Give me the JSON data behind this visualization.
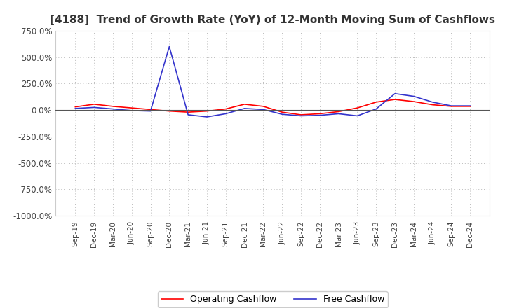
{
  "title": "[4188]  Trend of Growth Rate (YoY) of 12-Month Moving Sum of Cashflows",
  "ylim": [
    -1000,
    750
  ],
  "yticks": [
    750,
    500,
    250,
    0,
    -250,
    -500,
    -750,
    -1000
  ],
  "x_labels": [
    "Sep-19",
    "Dec-19",
    "Mar-20",
    "Jun-20",
    "Sep-20",
    "Dec-20",
    "Mar-21",
    "Jun-21",
    "Sep-21",
    "Dec-21",
    "Mar-22",
    "Jun-22",
    "Sep-22",
    "Dec-22",
    "Mar-23",
    "Jun-23",
    "Sep-23",
    "Dec-23",
    "Mar-24",
    "Jun-24",
    "Sep-24",
    "Dec-24"
  ],
  "operating_cashflow": [
    30,
    55,
    35,
    20,
    5,
    -10,
    -20,
    -10,
    10,
    55,
    35,
    -20,
    -45,
    -35,
    -15,
    20,
    75,
    100,
    80,
    50,
    35,
    35
  ],
  "free_cashflow": [
    15,
    25,
    10,
    -5,
    -10,
    600,
    -45,
    -65,
    -35,
    15,
    5,
    -40,
    -55,
    -50,
    -35,
    -55,
    10,
    155,
    130,
    75,
    40,
    40
  ],
  "operating_color": "#ff0000",
  "free_color": "#3333cc",
  "bg_color": "#ffffff",
  "grid_color": "#bbbbbb",
  "legend_labels": [
    "Operating Cashflow",
    "Free Cashflow"
  ],
  "title_color": "#333333",
  "title_fontsize": 11
}
